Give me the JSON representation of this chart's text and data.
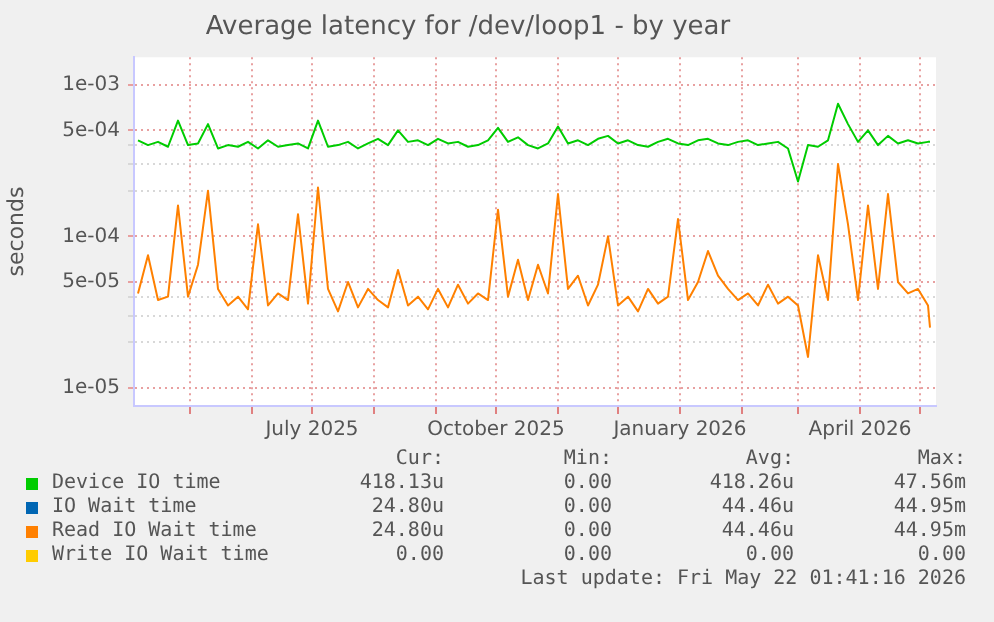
{
  "chart_data": {
    "type": "line",
    "title": "Average latency for /dev/loop1 - by year",
    "ylabel": "seconds",
    "x": [
      "2025-04-05",
      "2025-04-10",
      "2025-04-15",
      "2025-04-20",
      "2025-04-25",
      "2025-04-30",
      "2025-05-05",
      "2025-05-10",
      "2025-05-15",
      "2025-05-20",
      "2025-05-25",
      "2025-05-30",
      "2025-06-04",
      "2025-06-09",
      "2025-06-14",
      "2025-06-19",
      "2025-06-24",
      "2025-06-29",
      "2025-07-04",
      "2025-07-09",
      "2025-07-14",
      "2025-07-19",
      "2025-07-24",
      "2025-07-29",
      "2025-08-03",
      "2025-08-08",
      "2025-08-13",
      "2025-08-18",
      "2025-08-23",
      "2025-08-28",
      "2025-09-02",
      "2025-09-07",
      "2025-09-12",
      "2025-09-17",
      "2025-09-22",
      "2025-09-27",
      "2025-10-02",
      "2025-10-07",
      "2025-10-12",
      "2025-10-17",
      "2025-10-22",
      "2025-10-27",
      "2025-11-01",
      "2025-11-06",
      "2025-11-11",
      "2025-11-16",
      "2025-11-21",
      "2025-11-26",
      "2025-12-01",
      "2025-12-06",
      "2025-12-11",
      "2025-12-16",
      "2025-12-21",
      "2025-12-26",
      "2025-12-31",
      "2026-01-05",
      "2026-01-10",
      "2026-01-15",
      "2026-01-20",
      "2026-01-25",
      "2026-01-30",
      "2026-02-04",
      "2026-02-09",
      "2026-02-14",
      "2026-02-19",
      "2026-02-24",
      "2026-03-01",
      "2026-03-06",
      "2026-03-11",
      "2026-03-16",
      "2026-03-21",
      "2026-03-26",
      "2026-03-31",
      "2026-04-05",
      "2026-04-10",
      "2026-04-15",
      "2026-04-20",
      "2026-04-25",
      "2026-04-30",
      "2026-05-05",
      "2026-05-06"
    ],
    "series": [
      {
        "name": "Device IO time",
        "color": "#00cc00",
        "values": [
          0.00043,
          0.0004,
          0.00042,
          0.00039,
          0.00058,
          0.0004,
          0.00041,
          0.00055,
          0.00038,
          0.0004,
          0.00039,
          0.00042,
          0.00038,
          0.00043,
          0.00039,
          0.0004,
          0.00041,
          0.00038,
          0.00058,
          0.00039,
          0.0004,
          0.00042,
          0.00038,
          0.00041,
          0.00044,
          0.0004,
          0.0005,
          0.00042,
          0.00043,
          0.0004,
          0.00044,
          0.00041,
          0.00042,
          0.00039,
          0.0004,
          0.00043,
          0.00052,
          0.00042,
          0.00045,
          0.0004,
          0.00038,
          0.00041,
          0.00053,
          0.00041,
          0.00043,
          0.0004,
          0.00044,
          0.00046,
          0.00041,
          0.00043,
          0.0004,
          0.00039,
          0.00042,
          0.00044,
          0.00041,
          0.0004,
          0.00043,
          0.00044,
          0.00041,
          0.0004,
          0.00042,
          0.00043,
          0.0004,
          0.00041,
          0.00042,
          0.00038,
          0.00023,
          0.0004,
          0.00039,
          0.00043,
          0.00075,
          0.00055,
          0.00042,
          0.0005,
          0.0004,
          0.00046,
          0.00041,
          0.00043,
          0.00041,
          0.00042,
          0.00042
        ]
      },
      {
        "name": "IO Wait time",
        "color": "#0066b3",
        "values": [
          null,
          null,
          null,
          null,
          null,
          null,
          null,
          null,
          null,
          null,
          null,
          null,
          null,
          null,
          null,
          null,
          null,
          null,
          null,
          null,
          null,
          null,
          null,
          null,
          null,
          null,
          null,
          null,
          null,
          null,
          null,
          null,
          null,
          null,
          null,
          null,
          null,
          null,
          null,
          null,
          null,
          null,
          null,
          null,
          null,
          null,
          null,
          null,
          null,
          null,
          null,
          null,
          null,
          null,
          null,
          null,
          null,
          null,
          null,
          null,
          null,
          null,
          null,
          null,
          null,
          null,
          null,
          null,
          null,
          null,
          null,
          null,
          null,
          null,
          null,
          null,
          null,
          null,
          null,
          null,
          null
        ]
      },
      {
        "name": "Read IO Wait time",
        "color": "#ff8000",
        "values": [
          4.2e-05,
          7.5e-05,
          3.8e-05,
          4e-05,
          0.00016,
          4e-05,
          6.5e-05,
          0.0002,
          4.5e-05,
          3.5e-05,
          4e-05,
          3.3e-05,
          0.00012,
          3.5e-05,
          4.2e-05,
          3.8e-05,
          0.00014,
          3.6e-05,
          0.00021,
          4.5e-05,
          3.2e-05,
          5e-05,
          3.4e-05,
          4.5e-05,
          3.8e-05,
          3.4e-05,
          6e-05,
          3.5e-05,
          4e-05,
          3.3e-05,
          4.5e-05,
          3.4e-05,
          4.8e-05,
          3.6e-05,
          4.2e-05,
          3.8e-05,
          0.00015,
          4e-05,
          7e-05,
          3.8e-05,
          6.5e-05,
          4.2e-05,
          0.00019,
          4.5e-05,
          5.5e-05,
          3.5e-05,
          4.8e-05,
          0.0001,
          3.5e-05,
          4e-05,
          3.2e-05,
          4.5e-05,
          3.6e-05,
          4e-05,
          0.00013,
          3.8e-05,
          5e-05,
          8e-05,
          5.5e-05,
          4.5e-05,
          3.8e-05,
          4.2e-05,
          3.5e-05,
          4.8e-05,
          3.6e-05,
          4e-05,
          3.5e-05,
          1.6e-05,
          7.5e-05,
          3.8e-05,
          0.0003,
          0.00012,
          3.8e-05,
          0.00016,
          4.5e-05,
          0.00019,
          5e-05,
          4.2e-05,
          4.5e-05,
          3.5e-05,
          2.5e-05
        ]
      },
      {
        "name": "Write IO Wait time",
        "color": "#ffcc00",
        "values": [
          null,
          null,
          null,
          null,
          null,
          null,
          null,
          null,
          null,
          null,
          null,
          null,
          null,
          null,
          null,
          null,
          null,
          null,
          null,
          null,
          null,
          null,
          null,
          null,
          null,
          null,
          null,
          null,
          null,
          null,
          null,
          null,
          null,
          null,
          null,
          null,
          null,
          null,
          null,
          null,
          null,
          null,
          null,
          null,
          null,
          null,
          null,
          null,
          null,
          null,
          null,
          null,
          null,
          null,
          null,
          null,
          null,
          null,
          null,
          null,
          null,
          null,
          null,
          null,
          null,
          null,
          null,
          null,
          null,
          null,
          null,
          null,
          null,
          null,
          null,
          null,
          null,
          null,
          null,
          null,
          null
        ]
      }
    ],
    "log": "y",
    "ylim": [
      7.6e-06,
      0.00152
    ],
    "yticks": [
      {
        "value": 0.001,
        "label": "1e-03"
      },
      {
        "value": 0.0005,
        "label": "5e-04"
      },
      {
        "value": 0.0004,
        "label": null
      },
      {
        "value": 0.0003,
        "label": null
      },
      {
        "value": 0.0002,
        "label": null
      },
      {
        "value": 0.0001,
        "label": "1e-04"
      },
      {
        "value": 5e-05,
        "label": "5e-05"
      },
      {
        "value": 4e-05,
        "label": null
      },
      {
        "value": 3e-05,
        "label": null
      },
      {
        "value": 2e-05,
        "label": null
      },
      {
        "value": 1e-05,
        "label": "1e-05"
      }
    ],
    "xlim": [
      "2025-04-03",
      "2026-05-09"
    ],
    "xticks": [
      {
        "value": "2025-05-01",
        "label": null
      },
      {
        "value": "2025-06-01",
        "label": null
      },
      {
        "value": "2025-07-01",
        "label": "July 2025"
      },
      {
        "value": "2025-08-01",
        "label": null
      },
      {
        "value": "2025-09-01",
        "label": null
      },
      {
        "value": "2025-10-01",
        "label": "October 2025"
      },
      {
        "value": "2025-11-01",
        "label": null
      },
      {
        "value": "2025-12-01",
        "label": null
      },
      {
        "value": "2026-01-01",
        "label": "January 2026"
      },
      {
        "value": "2026-02-01",
        "label": null
      },
      {
        "value": "2026-03-01",
        "label": null
      },
      {
        "value": "2026-04-01",
        "label": "April 2026"
      },
      {
        "value": "2026-05-01",
        "label": null
      }
    ],
    "grid": true,
    "legend": "bottom",
    "annotations": [
      "Cur:",
      "Min:",
      "Avg:",
      "Max:",
      "418.13u",
      "0.00",
      "418.26u",
      "47.56m",
      "24.80u",
      "0.00",
      "44.46u",
      "44.95m",
      "24.80u",
      "0.00",
      "44.46u",
      "44.95m",
      "0.00",
      "0.00",
      "0.00",
      "0.00",
      "Last update: Fri May 22 01:41:16 2026"
    ]
  }
}
